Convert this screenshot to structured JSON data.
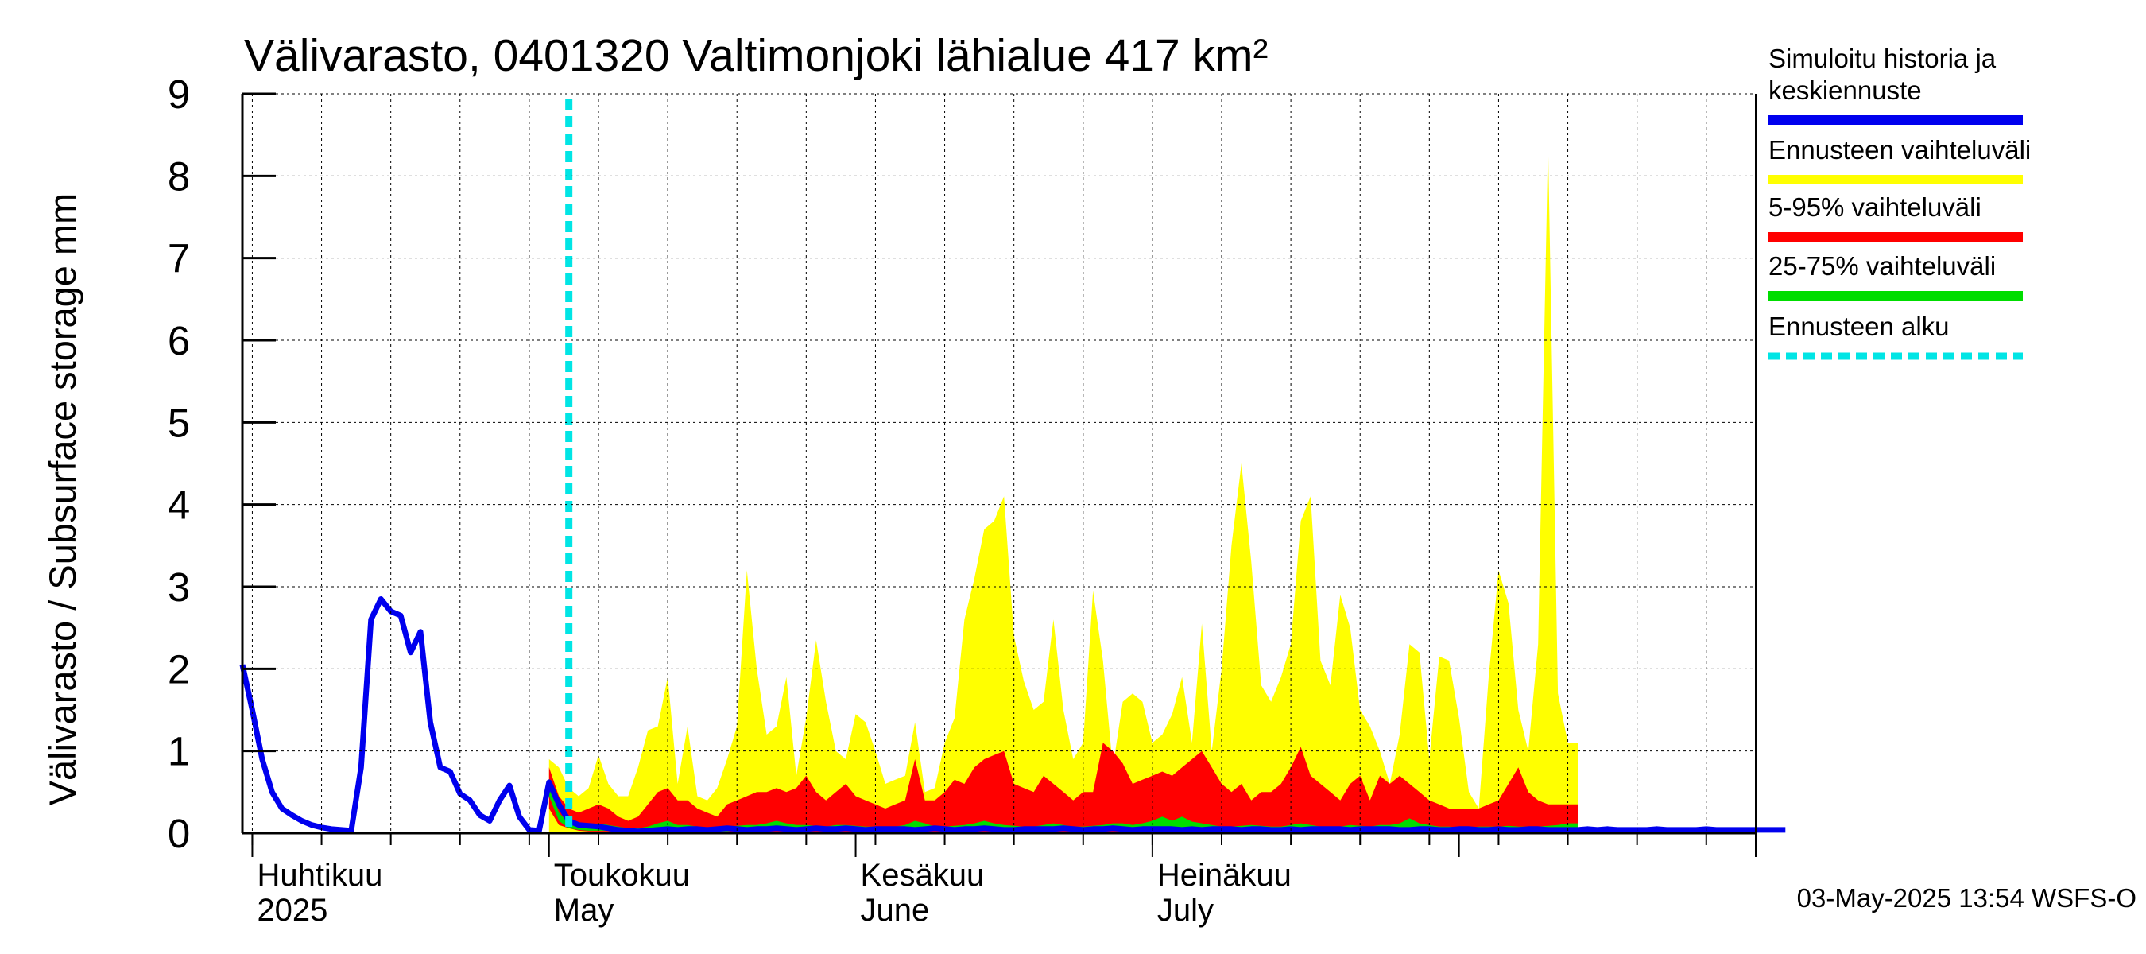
{
  "chart_data": {
    "type": "area",
    "title": "Välivarasto, 0401320 Valtimonjoki lähialue 417 km²",
    "ylabel": "Välivarasto / Subsurface storage  mm",
    "xlabel": "",
    "ylim": [
      0,
      9
    ],
    "yticks": [
      0,
      1,
      2,
      3,
      4,
      5,
      6,
      7,
      8,
      9
    ],
    "x_start": "2025-03-31",
    "x_end": "2025-08-31",
    "forecast_start": "2025-05-03",
    "month_labels": [
      {
        "fi": "Huhtikuu",
        "en": "2025",
        "date": "2025-04-01"
      },
      {
        "fi": "Toukokuu",
        "en": "May",
        "date": "2025-05-01"
      },
      {
        "fi": "Kesäkuu",
        "en": "June",
        "date": "2025-06-01"
      },
      {
        "fi": "Heinäkuu",
        "en": "July",
        "date": "2025-07-01"
      }
    ],
    "series": [
      {
        "name": "Simuloitu historia ja keskiennuste",
        "color": "#0000ee",
        "kind": "line",
        "start_day": 0,
        "values": [
          2.05,
          1.5,
          0.9,
          0.5,
          0.3,
          0.22,
          0.15,
          0.1,
          0.07,
          0.05,
          0.04,
          0.03,
          0.8,
          2.6,
          2.85,
          2.7,
          2.65,
          2.2,
          2.45,
          1.35,
          0.8,
          0.75,
          0.48,
          0.4,
          0.22,
          0.15,
          0.4,
          0.58,
          0.2,
          0.04,
          0.03,
          0.62,
          0.35,
          0.15,
          0.1,
          0.09,
          0.08,
          0.06,
          0.04,
          0.03,
          0.02,
          0.03,
          0.04,
          0.05,
          0.04,
          0.05,
          0.05,
          0.04,
          0.05,
          0.06,
          0.05,
          0.04,
          0.05,
          0.05,
          0.06,
          0.05,
          0.04,
          0.05,
          0.06,
          0.05,
          0.05,
          0.06,
          0.05,
          0.04,
          0.05,
          0.05,
          0.05,
          0.05,
          0.04,
          0.05,
          0.06,
          0.05,
          0.04,
          0.05,
          0.05,
          0.06,
          0.05,
          0.04,
          0.04,
          0.05,
          0.05,
          0.05,
          0.05,
          0.06,
          0.05,
          0.04,
          0.05,
          0.05,
          0.06,
          0.05,
          0.04,
          0.05,
          0.05,
          0.05,
          0.05,
          0.04,
          0.05,
          0.04,
          0.05,
          0.05,
          0.05,
          0.04,
          0.05,
          0.05,
          0.04,
          0.04,
          0.05,
          0.04,
          0.05,
          0.05,
          0.05,
          0.05,
          0.04,
          0.05,
          0.05,
          0.05,
          0.05,
          0.04,
          0.04,
          0.05,
          0.05,
          0.04,
          0.04,
          0.05,
          0.05,
          0.04,
          0.04,
          0.05,
          0.04,
          0.04,
          0.05,
          0.05,
          0.04,
          0.04,
          0.04,
          0.04,
          0.05,
          0.04,
          0.05,
          0.04,
          0.04,
          0.04,
          0.04,
          0.05,
          0.04,
          0.04,
          0.04,
          0.04,
          0.05,
          0.04,
          0.04,
          0.04,
          0.04,
          0.04,
          0.04,
          0.04,
          0.04
        ]
      },
      {
        "name": "Ennusteen vaihteluväli",
        "color": "#ffff00",
        "kind": "band",
        "start_day": 31,
        "upper": [
          0.9,
          0.8,
          0.55,
          0.45,
          0.55,
          0.95,
          0.6,
          0.45,
          0.45,
          0.8,
          1.25,
          1.3,
          1.9,
          0.6,
          1.3,
          0.45,
          0.4,
          0.55,
          0.9,
          1.3,
          3.2,
          2.0,
          1.2,
          1.3,
          1.9,
          0.7,
          1.4,
          2.35,
          1.6,
          1.0,
          0.9,
          1.45,
          1.35,
          1.0,
          0.6,
          0.65,
          0.7,
          1.35,
          0.5,
          0.55,
          1.1,
          1.4,
          2.6,
          3.1,
          3.7,
          3.8,
          4.1,
          2.4,
          1.85,
          1.5,
          1.6,
          2.6,
          1.5,
          0.9,
          1.1,
          2.95,
          2.1,
          0.8,
          1.6,
          1.7,
          1.6,
          1.1,
          1.2,
          1.45,
          1.9,
          1.1,
          2.55,
          1.0,
          2.0,
          3.5,
          4.5,
          3.3,
          1.8,
          1.6,
          1.9,
          2.3,
          3.8,
          4.1,
          2.1,
          1.8,
          2.9,
          2.5,
          1.5,
          1.3,
          1.0,
          0.6,
          1.2,
          2.3,
          2.2,
          0.9,
          2.15,
          2.1,
          1.4,
          0.5,
          0.3,
          1.9,
          3.2,
          2.8,
          1.5,
          1.0,
          2.3,
          8.4,
          1.7,
          1.1,
          1.1
        ],
        "lower": [
          0,
          0,
          0,
          0,
          0,
          0,
          0,
          0,
          0,
          0,
          0,
          0,
          0,
          0,
          0,
          0,
          0,
          0,
          0,
          0,
          0,
          0,
          0,
          0,
          0,
          0,
          0,
          0,
          0,
          0,
          0,
          0,
          0,
          0,
          0,
          0,
          0,
          0,
          0,
          0,
          0,
          0,
          0,
          0,
          0,
          0,
          0,
          0,
          0,
          0,
          0,
          0,
          0,
          0,
          0,
          0,
          0,
          0,
          0,
          0,
          0,
          0,
          0,
          0,
          0,
          0,
          0,
          0,
          0,
          0,
          0,
          0,
          0,
          0,
          0,
          0,
          0,
          0,
          0,
          0,
          0,
          0,
          0,
          0,
          0,
          0,
          0,
          0,
          0,
          0,
          0,
          0,
          0,
          0,
          0,
          0,
          0,
          0,
          0,
          0,
          0,
          0,
          0,
          0,
          0
        ]
      },
      {
        "name": "5-95% vaihteluväli",
        "color": "#ff0000",
        "kind": "band",
        "start_day": 31,
        "upper": [
          0.8,
          0.45,
          0.3,
          0.25,
          0.3,
          0.35,
          0.3,
          0.2,
          0.15,
          0.2,
          0.35,
          0.5,
          0.55,
          0.4,
          0.4,
          0.3,
          0.25,
          0.2,
          0.35,
          0.4,
          0.45,
          0.5,
          0.5,
          0.55,
          0.5,
          0.55,
          0.7,
          0.5,
          0.4,
          0.5,
          0.6,
          0.45,
          0.4,
          0.35,
          0.3,
          0.35,
          0.4,
          0.9,
          0.4,
          0.4,
          0.5,
          0.65,
          0.6,
          0.8,
          0.9,
          0.95,
          1.0,
          0.6,
          0.55,
          0.5,
          0.7,
          0.6,
          0.5,
          0.4,
          0.5,
          0.5,
          1.1,
          1.0,
          0.85,
          0.6,
          0.65,
          0.7,
          0.75,
          0.7,
          0.8,
          0.9,
          1.0,
          0.8,
          0.6,
          0.5,
          0.6,
          0.4,
          0.5,
          0.5,
          0.6,
          0.8,
          1.05,
          0.7,
          0.6,
          0.5,
          0.4,
          0.6,
          0.7,
          0.4,
          0.7,
          0.6,
          0.7,
          0.6,
          0.5,
          0.4,
          0.35,
          0.3,
          0.3,
          0.3,
          0.3,
          0.35,
          0.4,
          0.6,
          0.8,
          0.5,
          0.4,
          0.35,
          0.35,
          0.35,
          0.35
        ],
        "lower": [
          0.3,
          0.1,
          0.06,
          0.03,
          0.02,
          0.02,
          0.02,
          0.01,
          0.01,
          0.01,
          0.01,
          0.01,
          0.01,
          0.01,
          0.01,
          0.01,
          0.01,
          0.01,
          0.01,
          0.01,
          0.01,
          0.01,
          0.01,
          0.01,
          0.01,
          0.01,
          0.01,
          0.01,
          0.01,
          0.01,
          0.01,
          0.01,
          0.01,
          0.01,
          0.01,
          0.01,
          0.01,
          0.01,
          0.01,
          0.01,
          0.01,
          0.01,
          0.01,
          0.01,
          0.01,
          0.01,
          0.01,
          0.01,
          0.01,
          0.01,
          0.01,
          0.01,
          0.01,
          0.01,
          0.01,
          0.01,
          0.01,
          0.01,
          0.01,
          0.01,
          0.01,
          0.01,
          0.01,
          0.01,
          0.01,
          0.01,
          0.01,
          0.01,
          0.01,
          0.01,
          0.01,
          0.01,
          0.01,
          0.01,
          0.01,
          0.01,
          0.01,
          0.01,
          0.01,
          0.01,
          0.01,
          0.01,
          0.01,
          0.01,
          0.01,
          0.01,
          0.01,
          0.01,
          0.01,
          0.01,
          0.01,
          0.01,
          0.01,
          0.01,
          0.01,
          0.01,
          0.01,
          0.01,
          0.01,
          0.01,
          0.01,
          0.01,
          0.01,
          0.01,
          0.01
        ]
      },
      {
        "name": "25-75% vaihteluväli",
        "color": "#00dd00",
        "kind": "band",
        "start_day": 31,
        "upper": [
          0.6,
          0.25,
          0.12,
          0.1,
          0.1,
          0.12,
          0.1,
          0.08,
          0.06,
          0.06,
          0.08,
          0.12,
          0.15,
          0.1,
          0.1,
          0.08,
          0.07,
          0.07,
          0.08,
          0.09,
          0.1,
          0.1,
          0.12,
          0.15,
          0.12,
          0.1,
          0.1,
          0.09,
          0.08,
          0.1,
          0.1,
          0.09,
          0.08,
          0.08,
          0.07,
          0.08,
          0.1,
          0.15,
          0.12,
          0.08,
          0.08,
          0.09,
          0.1,
          0.12,
          0.15,
          0.12,
          0.1,
          0.09,
          0.08,
          0.08,
          0.1,
          0.12,
          0.1,
          0.08,
          0.08,
          0.09,
          0.1,
          0.12,
          0.12,
          0.1,
          0.12,
          0.15,
          0.2,
          0.15,
          0.2,
          0.14,
          0.12,
          0.1,
          0.08,
          0.08,
          0.09,
          0.1,
          0.09,
          0.08,
          0.08,
          0.1,
          0.12,
          0.1,
          0.08,
          0.07,
          0.08,
          0.1,
          0.09,
          0.08,
          0.1,
          0.1,
          0.12,
          0.18,
          0.12,
          0.1,
          0.08,
          0.08,
          0.07,
          0.07,
          0.08,
          0.08,
          0.08,
          0.09,
          0.08,
          0.08,
          0.08,
          0.09,
          0.1,
          0.12,
          0.12
        ],
        "lower": [
          0.45,
          0.15,
          0.06,
          0.04,
          0.03,
          0.03,
          0.03,
          0.03,
          0.02,
          0.02,
          0.02,
          0.03,
          0.03,
          0.03,
          0.03,
          0.03,
          0.02,
          0.02,
          0.02,
          0.03,
          0.03,
          0.03,
          0.03,
          0.03,
          0.03,
          0.03,
          0.03,
          0.03,
          0.02,
          0.02,
          0.03,
          0.03,
          0.03,
          0.02,
          0.02,
          0.02,
          0.03,
          0.03,
          0.03,
          0.03,
          0.02,
          0.02,
          0.03,
          0.03,
          0.03,
          0.03,
          0.03,
          0.02,
          0.02,
          0.02,
          0.03,
          0.03,
          0.03,
          0.02,
          0.02,
          0.02,
          0.03,
          0.03,
          0.03,
          0.03,
          0.03,
          0.03,
          0.03,
          0.03,
          0.03,
          0.03,
          0.03,
          0.02,
          0.02,
          0.02,
          0.02,
          0.03,
          0.02,
          0.02,
          0.02,
          0.02,
          0.03,
          0.02,
          0.02,
          0.02,
          0.02,
          0.03,
          0.02,
          0.02,
          0.02,
          0.02,
          0.03,
          0.03,
          0.02,
          0.02,
          0.02,
          0.02,
          0.02,
          0.02,
          0.02,
          0.02,
          0.02,
          0.02,
          0.02,
          0.02,
          0.02,
          0.02,
          0.02,
          0.02,
          0.02
        ]
      }
    ],
    "forecast_marker": {
      "name": "Ennusteen alku",
      "color": "#00e5e5"
    },
    "grid": true,
    "legend_position": "right"
  },
  "legend": [
    {
      "lines": [
        "Simuloitu historia ja",
        "keskiennuste"
      ],
      "color": "#0000ee",
      "style": "solid"
    },
    {
      "lines": [
        "Ennusteen vaihteluväli"
      ],
      "color": "#ffff00",
      "style": "solid"
    },
    {
      "lines": [
        "5-95% vaihteluväli"
      ],
      "color": "#ff0000",
      "style": "solid"
    },
    {
      "lines": [
        "25-75% vaihteluväli"
      ],
      "color": "#00dd00",
      "style": "solid"
    },
    {
      "lines": [
        "Ennusteen alku"
      ],
      "color": "#00e5e5",
      "style": "dashed"
    }
  ],
  "footer": "03-May-2025 13:54 WSFS-O"
}
